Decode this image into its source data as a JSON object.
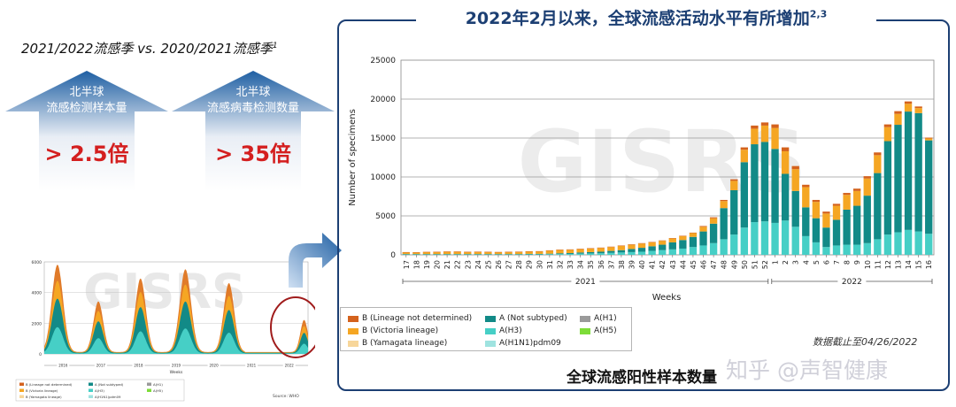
{
  "header": {
    "left_caption": "2021/2022流感季 vs. 2020/2021流感季",
    "left_caption_sup": "1",
    "title": "2022年2月以来，全球流感活动水平有所增加",
    "title_sup": "2,3"
  },
  "stats": [
    {
      "line1": "北半球",
      "line2": "流感检测样本量",
      "value": "> 2.5倍"
    },
    {
      "line1": "北半球",
      "line2": "流感病毒检测数量",
      "value": "> 35倍"
    }
  ],
  "chart_data": {
    "type": "bar",
    "stacked": true,
    "watermark": "GISRS",
    "ylabel": "Number of specimens",
    "xlabel": "Weeks",
    "ylim": [
      0,
      25000
    ],
    "yticks": [
      "0",
      "5000",
      "10000",
      "15000",
      "20000",
      "25000"
    ],
    "grid": true,
    "categories": [
      "17",
      "18",
      "19",
      "20",
      "21",
      "22",
      "23",
      "24",
      "25",
      "26",
      "27",
      "28",
      "29",
      "30",
      "31",
      "32",
      "33",
      "34",
      "35",
      "36",
      "37",
      "38",
      "39",
      "40",
      "41",
      "42",
      "43",
      "44",
      "45",
      "46",
      "47",
      "48",
      "49",
      "50",
      "51",
      "52",
      "1",
      "2",
      "3",
      "4",
      "5",
      "6",
      "7",
      "8",
      "9",
      "10",
      "11",
      "12",
      "13",
      "14",
      "15",
      "16"
    ],
    "year_groups": [
      {
        "label": "2021",
        "from": 0,
        "to": 35
      },
      {
        "label": "2022",
        "from": 36,
        "to": 51
      }
    ],
    "series": [
      {
        "name": "A(H1N1)pdm09",
        "color": "#9fe3e0",
        "values": [
          0,
          0,
          0,
          0,
          0,
          0,
          0,
          0,
          0,
          0,
          0,
          0,
          0,
          0,
          0,
          0,
          0,
          0,
          0,
          0,
          0,
          0,
          0,
          0,
          0,
          0,
          0,
          0,
          0,
          0,
          0,
          0,
          0,
          0,
          0,
          0,
          0,
          0,
          0,
          0,
          0,
          0,
          0,
          0,
          0,
          0,
          0,
          0,
          0,
          0,
          0,
          0
        ]
      },
      {
        "name": "A(H3)",
        "color": "#46cfc6",
        "values": [
          50,
          50,
          50,
          50,
          50,
          50,
          50,
          50,
          50,
          50,
          50,
          50,
          60,
          60,
          80,
          100,
          120,
          150,
          180,
          200,
          250,
          300,
          350,
          400,
          500,
          600,
          700,
          800,
          1000,
          1200,
          1500,
          2000,
          2600,
          3500,
          4200,
          4300,
          4100,
          4400,
          3600,
          2400,
          1600,
          1000,
          1200,
          1300,
          1300,
          1500,
          2000,
          2600,
          2900,
          3200,
          3000,
          2700
        ]
      },
      {
        "name": "A(Not subtyped)",
        "color": "#128a87",
        "values": [
          50,
          50,
          50,
          50,
          50,
          50,
          50,
          50,
          50,
          50,
          50,
          50,
          60,
          60,
          70,
          100,
          110,
          150,
          170,
          200,
          250,
          300,
          400,
          500,
          600,
          700,
          900,
          1100,
          1300,
          1800,
          2500,
          4000,
          5700,
          8400,
          10000,
          10200,
          9500,
          6000,
          4600,
          3700,
          3100,
          2500,
          3300,
          4500,
          5000,
          6100,
          8500,
          12000,
          13800,
          15200,
          15200,
          12000
        ]
      },
      {
        "name": "A(H1)",
        "color": "#9a9a9a",
        "values": [
          0,
          0,
          0,
          0,
          0,
          0,
          0,
          0,
          0,
          0,
          0,
          0,
          0,
          0,
          0,
          0,
          0,
          0,
          0,
          0,
          0,
          0,
          0,
          0,
          0,
          0,
          0,
          0,
          0,
          0,
          0,
          0,
          0,
          0,
          0,
          0,
          0,
          0,
          0,
          0,
          0,
          0,
          0,
          0,
          0,
          0,
          0,
          0,
          0,
          0,
          0,
          0
        ]
      },
      {
        "name": "A(H5)",
        "color": "#7ddc38",
        "values": [
          0,
          0,
          0,
          0,
          0,
          0,
          0,
          0,
          0,
          0,
          0,
          0,
          0,
          0,
          0,
          0,
          0,
          0,
          0,
          0,
          0,
          0,
          0,
          0,
          0,
          0,
          0,
          0,
          0,
          0,
          0,
          0,
          0,
          0,
          0,
          0,
          0,
          0,
          0,
          0,
          0,
          0,
          0,
          0,
          0,
          0,
          0,
          0,
          0,
          0,
          0,
          0
        ]
      },
      {
        "name": "B (Yamagata lineage)",
        "color": "#f7d69a",
        "values": [
          0,
          0,
          0,
          0,
          0,
          0,
          0,
          0,
          0,
          0,
          0,
          0,
          0,
          0,
          0,
          0,
          0,
          0,
          0,
          0,
          0,
          0,
          0,
          0,
          0,
          0,
          0,
          0,
          0,
          0,
          0,
          0,
          0,
          0,
          0,
          0,
          0,
          0,
          0,
          0,
          0,
          0,
          0,
          0,
          0,
          0,
          0,
          0,
          0,
          0,
          0,
          0
        ]
      },
      {
        "name": "B (Victoria lineage)",
        "color": "#f5a623",
        "values": [
          220,
          200,
          250,
          260,
          300,
          300,
          260,
          280,
          260,
          240,
          260,
          280,
          300,
          320,
          380,
          420,
          420,
          430,
          450,
          480,
          500,
          550,
          550,
          550,
          500,
          500,
          500,
          500,
          500,
          600,
          700,
          900,
          1200,
          1600,
          2000,
          2100,
          2700,
          2900,
          2800,
          2600,
          2100,
          1800,
          1800,
          1900,
          1900,
          2200,
          2300,
          1800,
          1400,
          1000,
          650,
          250
        ]
      },
      {
        "name": "B (Lineage not determined)",
        "color": "#d4621d",
        "values": [
          30,
          30,
          30,
          30,
          30,
          30,
          30,
          30,
          30,
          30,
          30,
          30,
          30,
          30,
          50,
          50,
          50,
          50,
          50,
          50,
          50,
          50,
          50,
          50,
          50,
          50,
          50,
          50,
          50,
          100,
          120,
          150,
          200,
          300,
          400,
          400,
          450,
          500,
          400,
          300,
          250,
          250,
          250,
          250,
          300,
          300,
          350,
          350,
          350,
          300,
          200,
          100
        ]
      }
    ],
    "legend_position": "bottom-left"
  },
  "footer": {
    "data_cutoff": "数据截止至04/26/2022",
    "caption": "全球流感阳性样本数量",
    "watermark": "知乎 @声智健康"
  },
  "thumbnail": {
    "yticks": [
      "0",
      "2000",
      "4000",
      "6000"
    ],
    "year_labels": [
      "2016",
      "2017",
      "2018",
      "2019",
      "2020",
      "2021",
      "2022"
    ],
    "xlabel": "Weeks",
    "watermark": "GISRS",
    "legend": [
      "B (Lineage not determined)",
      "A (Not subtyped)",
      "A(H1)",
      "B (Victoria lineage)",
      "A(H3)",
      "A(H5)",
      "B (Yamagata lineage)",
      "A(H1N1)pdm09"
    ],
    "source": "Source: WHO"
  },
  "colors": {
    "navy": "#1c3f73",
    "arrow_blue": "#1f5fa3",
    "stat_red": "#d41f1f"
  }
}
